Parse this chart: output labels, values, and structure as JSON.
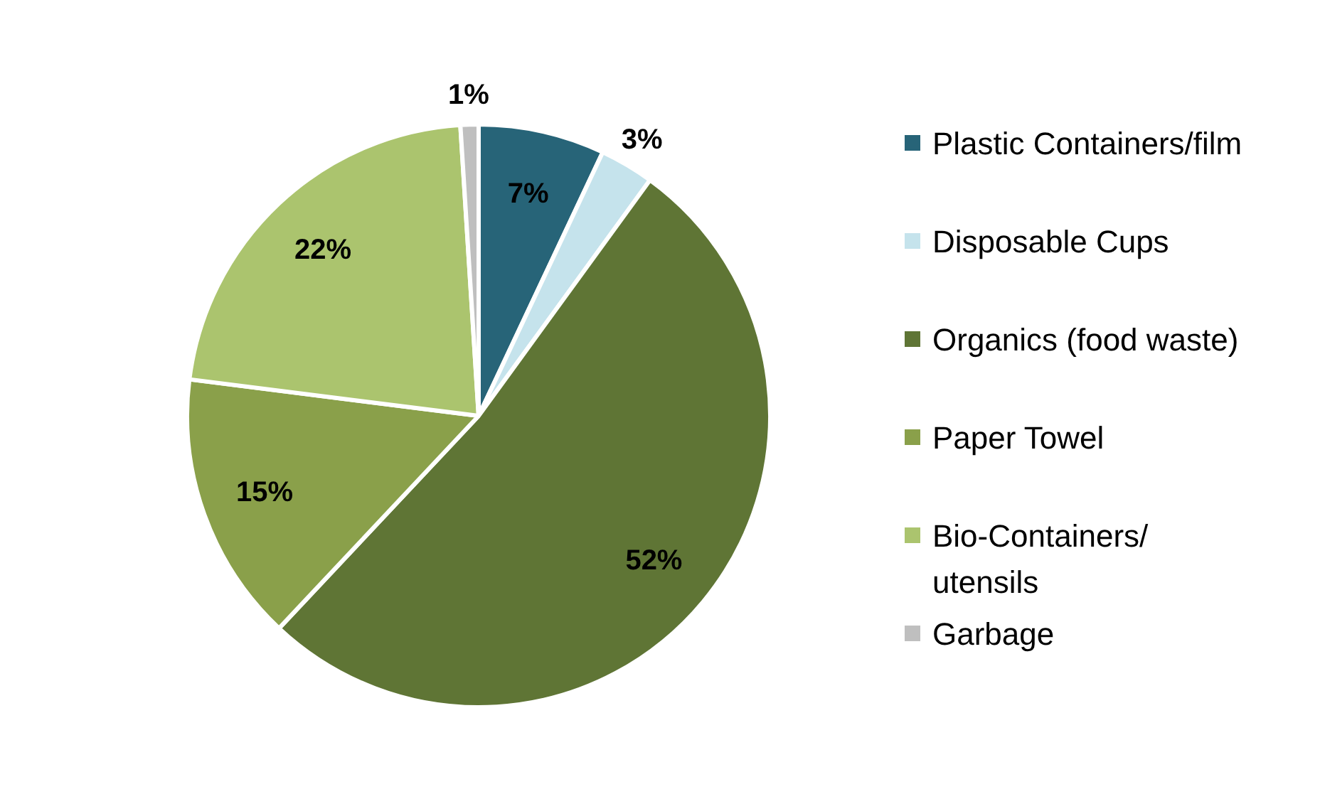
{
  "chart_data": {
    "type": "pie",
    "categories": [
      "Plastic Containers/film",
      "Disposable Cups",
      "Organics (food waste)",
      "Paper Towel",
      "Bio-Containers/ utensils",
      "Garbage"
    ],
    "values": [
      7,
      3,
      52,
      15,
      22,
      1
    ],
    "colors": [
      "#276478",
      "#c5e3ec",
      "#5f7535",
      "#8aa04a",
      "#abc46e",
      "#bfbfbf"
    ],
    "value_labels": [
      "7%",
      "3%",
      "52%",
      "15%",
      "22%",
      "1%"
    ],
    "legend": "right"
  }
}
